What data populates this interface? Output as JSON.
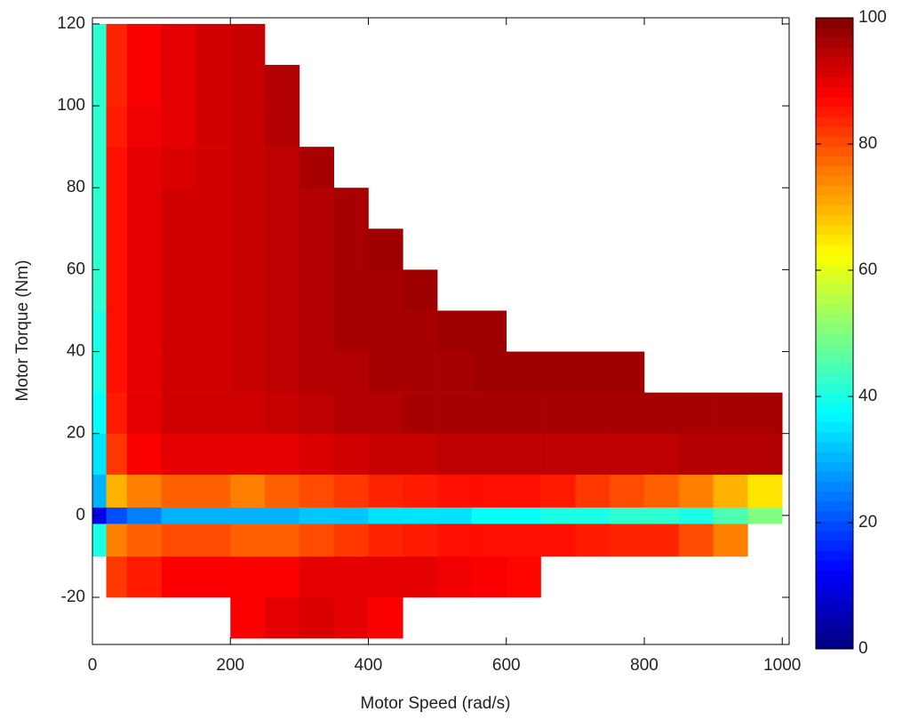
{
  "chart_data": {
    "type": "heatmap",
    "xlabel": "Motor Speed (rad/s)",
    "ylabel": "Motor Torque (Nm)",
    "colormap": "jet",
    "xlim": [
      0,
      1010
    ],
    "ylim": [
      -31.5,
      121.5
    ],
    "xticks": [
      0,
      200,
      400,
      600,
      800,
      1000
    ],
    "yticks": [
      -20,
      0,
      20,
      40,
      60,
      80,
      100,
      120
    ],
    "x_edges": [
      0,
      20,
      50,
      100,
      150,
      200,
      250,
      300,
      350,
      400,
      450,
      500,
      550,
      600,
      650,
      700,
      750,
      800,
      850,
      900,
      950,
      1000
    ],
    "y_edges": [
      -30,
      -20,
      -10,
      -2,
      2,
      10,
      20,
      30,
      40,
      50,
      60,
      70,
      80,
      90,
      100,
      110,
      120
    ],
    "z": [
      [
        null,
        null,
        null,
        null,
        null,
        88,
        90,
        91,
        90,
        88,
        null,
        null,
        null,
        null,
        null,
        null,
        null,
        null,
        null,
        null,
        null
      ],
      [
        null,
        82,
        85,
        88,
        88,
        88,
        88,
        90,
        90,
        90,
        90,
        89,
        88,
        87,
        null,
        null,
        null,
        null,
        null,
        null,
        null
      ],
      [
        40,
        75,
        78,
        80,
        80,
        78,
        78,
        80,
        82,
        84,
        85,
        86,
        86,
        86,
        86,
        85,
        84,
        84,
        80,
        75,
        null
      ],
      [
        10,
        20,
        25,
        30,
        30,
        30,
        30,
        32,
        32,
        35,
        35,
        35,
        38,
        38,
        40,
        40,
        42,
        42,
        40,
        45,
        50
      ],
      [
        30,
        70,
        75,
        78,
        78,
        75,
        78,
        80,
        82,
        84,
        85,
        86,
        86,
        86,
        85,
        82,
        80,
        78,
        75,
        70,
        65
      ],
      [
        35,
        82,
        88,
        90,
        90,
        90,
        90,
        91,
        92,
        93,
        93,
        94,
        94,
        94,
        94,
        94,
        94,
        94,
        95,
        95,
        95
      ],
      [
        38,
        85,
        90,
        92,
        92,
        92,
        93,
        94,
        95,
        95,
        96,
        96,
        96,
        96,
        96,
        96,
        96,
        96,
        96,
        96,
        96
      ],
      [
        40,
        86,
        90,
        92,
        92,
        93,
        94,
        95,
        95,
        96,
        96,
        96,
        97,
        97,
        97,
        97,
        97,
        null,
        null,
        null,
        null
      ],
      [
        40,
        86,
        90,
        92,
        92,
        93,
        94,
        95,
        96,
        96,
        96,
        97,
        97,
        null,
        null,
        null,
        null,
        null,
        null,
        null,
        null
      ],
      [
        42,
        86,
        90,
        92,
        92,
        93,
        94,
        95,
        96,
        96,
        97,
        null,
        null,
        null,
        null,
        null,
        null,
        null,
        null,
        null,
        null
      ],
      [
        42,
        86,
        90,
        92,
        92,
        93,
        94,
        95,
        96,
        97,
        null,
        null,
        null,
        null,
        null,
        null,
        null,
        null,
        null,
        null,
        null
      ],
      [
        42,
        86,
        90,
        92,
        92,
        93,
        94,
        95,
        96,
        null,
        null,
        null,
        null,
        null,
        null,
        null,
        null,
        null,
        null,
        null,
        null
      ],
      [
        42,
        86,
        90,
        91,
        92,
        93,
        94,
        96,
        null,
        null,
        null,
        null,
        null,
        null,
        null,
        null,
        null,
        null,
        null,
        null,
        null
      ],
      [
        42,
        85,
        89,
        90,
        92,
        93,
        95,
        null,
        null,
        null,
        null,
        null,
        null,
        null,
        null,
        null,
        null,
        null,
        null,
        null,
        null
      ],
      [
        42,
        84,
        88,
        90,
        92,
        93,
        95,
        null,
        null,
        null,
        null,
        null,
        null,
        null,
        null,
        null,
        null,
        null,
        null,
        null,
        null
      ],
      [
        42,
        84,
        88,
        90,
        92,
        93,
        null,
        null,
        null,
        null,
        null,
        null,
        null,
        null,
        null,
        null,
        null,
        null,
        null,
        null,
        null
      ]
    ],
    "colorbar": {
      "lim": [
        0,
        100
      ],
      "ticks": [
        0,
        20,
        40,
        60,
        80,
        100
      ]
    }
  }
}
